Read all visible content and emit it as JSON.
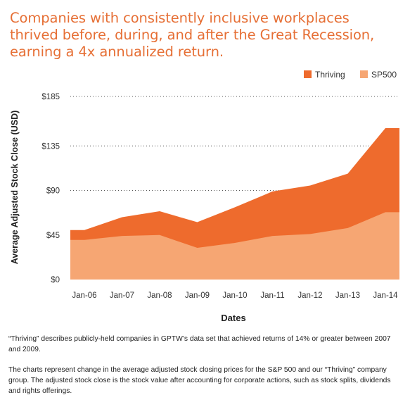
{
  "title": "Companies with consistently inclusive workplaces\nthrived before, during, and after the Great Recession,\nearning a 4x annualized return.",
  "colors": {
    "title": "#e66f35",
    "thriving": "#ee6b2d",
    "sp500": "#f6a673",
    "grid": "#555555",
    "axis_text": "#333333"
  },
  "chart_data": {
    "type": "area",
    "xlabel": "Dates",
    "ylabel": "Average Adjusted Stock Close (USD)",
    "x_tick_labels": [
      "Jan-06",
      "Jan-07",
      "Jan-08",
      "Jan-09",
      "Jan-10",
      "Jan-11",
      "Jan-12",
      "Jan-13",
      "Jan-14"
    ],
    "y_tick_labels": [
      "$0",
      "$45",
      "$90",
      "$135",
      "$185"
    ],
    "y_ticks": [
      0,
      45,
      90,
      135,
      185
    ],
    "ylim": [
      0,
      185
    ],
    "x": [
      0,
      1,
      2,
      3,
      4,
      5,
      6,
      7,
      8
    ],
    "legend_position": "top-right",
    "series": [
      {
        "name": "Thriving",
        "values": [
          50,
          63,
          69,
          58,
          73,
          89,
          95,
          107,
          153
        ]
      },
      {
        "name": "SP500",
        "values": [
          40,
          44,
          45,
          32,
          37,
          44,
          46,
          52,
          68
        ]
      }
    ],
    "grid": true,
    "gridlines": "dotted horizontal"
  },
  "notes": [
    "“Thriving” describes publicly-held companies in GPTW’s data set that achieved returns of 14% or greater between 2007 and 2009.",
    "The charts represent change in the average adjusted stock closing prices for the S&P 500 and our “Thriving” company group. The adjusted stock close is the stock value after accounting for corporate actions, such as stock splits, dividends and rights offerings."
  ]
}
